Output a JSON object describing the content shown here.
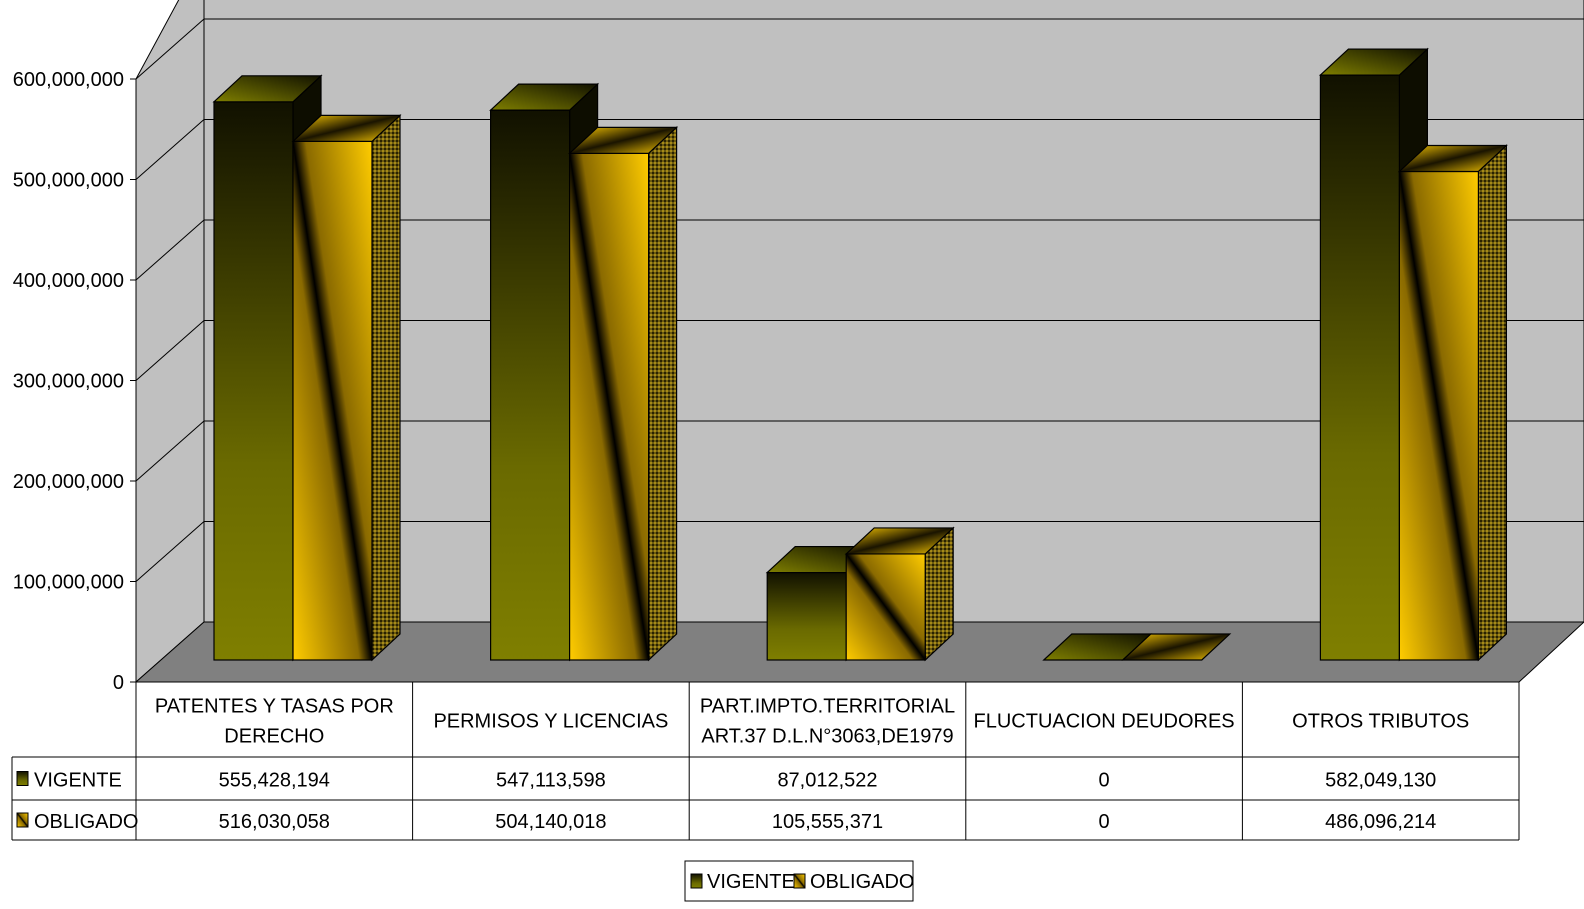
{
  "chart_data": {
    "type": "bar",
    "categories": [
      [
        "PATENTES Y TASAS POR",
        "DERECHO"
      ],
      [
        "PERMISOS Y LICENCIAS"
      ],
      [
        "PART.IMPTO.TERRITORIAL",
        "ART.37 D.L.N°3063,DE1979"
      ],
      [
        "FLUCTUACION DEUDORES"
      ],
      [
        "OTROS TRIBUTOS"
      ]
    ],
    "series": [
      {
        "name": "VIGENTE",
        "values": [
          555428194,
          547113598,
          87012522,
          0,
          582049130
        ],
        "labels": [
          "555,428,194",
          "547,113,598",
          "87,012,522",
          "0",
          "582,049,130"
        ],
        "color": "#7f7f00"
      },
      {
        "name": "OBLIGADO",
        "values": [
          516030058,
          504140018,
          105555371,
          0,
          486096214
        ],
        "labels": [
          "516,030,058",
          "504,140,018",
          "105,555,371",
          "0",
          "486,096,214"
        ],
        "color": "#ffcc00"
      }
    ],
    "y_ticks": [
      "0",
      "100,000,000",
      "200,000,000",
      "300,000,000",
      "400,000,000",
      "500,000,000",
      "600,000,000"
    ],
    "ylim": [
      0,
      600000000
    ],
    "grid": true,
    "legend_position": "bottom",
    "data_table": true,
    "colors": {
      "wall": "#c0c0c0",
      "floor": "#808080",
      "grid": "#000000"
    }
  }
}
